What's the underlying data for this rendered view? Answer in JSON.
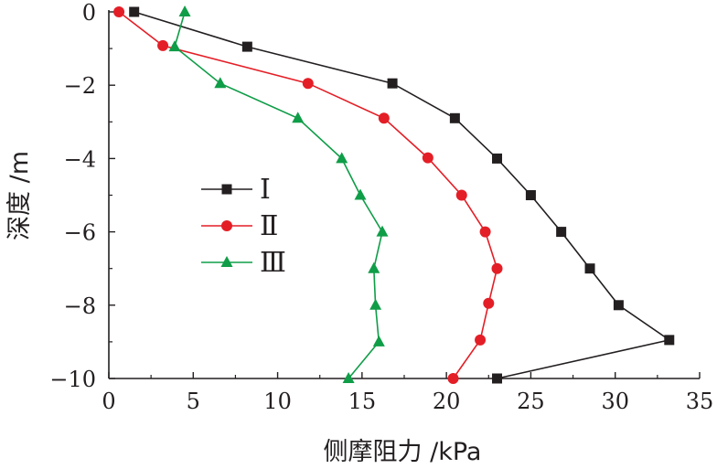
{
  "chart_data": {
    "type": "line",
    "xlabel": "侧摩阻力 /kPa",
    "ylabel": "深度 /m",
    "xlim": [
      0,
      35
    ],
    "ylim": [
      -10,
      0
    ],
    "xticks": [
      0,
      5,
      10,
      15,
      20,
      25,
      30,
      35
    ],
    "xtick_labels": [
      "0",
      "5",
      "10",
      "15",
      "20",
      "25",
      "30",
      "35"
    ],
    "yticks": [
      0,
      -2,
      -4,
      -6,
      -8,
      -10
    ],
    "ytick_labels": [
      "0",
      "−2",
      "−4",
      "−6",
      "−8",
      "−10"
    ],
    "grid": false,
    "legend_position": "center-left",
    "series": [
      {
        "name": "Ⅰ",
        "color": "#231f20",
        "marker": "square",
        "points": [
          [
            1.5,
            0
          ],
          [
            8.2,
            -0.95
          ],
          [
            16.8,
            -1.95
          ],
          [
            20.5,
            -2.9
          ],
          [
            23.0,
            -4.0
          ],
          [
            25.0,
            -5.0
          ],
          [
            26.8,
            -6.0
          ],
          [
            28.5,
            -7.0
          ],
          [
            30.2,
            -8.0
          ],
          [
            33.2,
            -8.95
          ],
          [
            23.0,
            -10.0
          ]
        ]
      },
      {
        "name": "Ⅱ",
        "color": "#e41e26",
        "marker": "circle",
        "points": [
          [
            0.6,
            0
          ],
          [
            3.2,
            -0.92
          ],
          [
            11.8,
            -1.95
          ],
          [
            16.3,
            -2.9
          ],
          [
            18.9,
            -3.98
          ],
          [
            20.9,
            -5.0
          ],
          [
            22.3,
            -6.0
          ],
          [
            23.0,
            -7.0
          ],
          [
            22.5,
            -7.95
          ],
          [
            22.0,
            -8.95
          ],
          [
            20.4,
            -10.0
          ]
        ]
      },
      {
        "name": "Ⅲ",
        "color": "#0f9d48",
        "marker": "triangle",
        "points": [
          [
            4.5,
            0
          ],
          [
            3.9,
            -0.95
          ],
          [
            6.6,
            -1.95
          ],
          [
            11.2,
            -2.9
          ],
          [
            13.8,
            -4.0
          ],
          [
            14.9,
            -5.0
          ],
          [
            16.2,
            -6.0
          ],
          [
            15.7,
            -7.0
          ],
          [
            15.8,
            -8.0
          ],
          [
            16.0,
            -9.0
          ],
          [
            14.2,
            -10.0
          ]
        ]
      }
    ]
  }
}
